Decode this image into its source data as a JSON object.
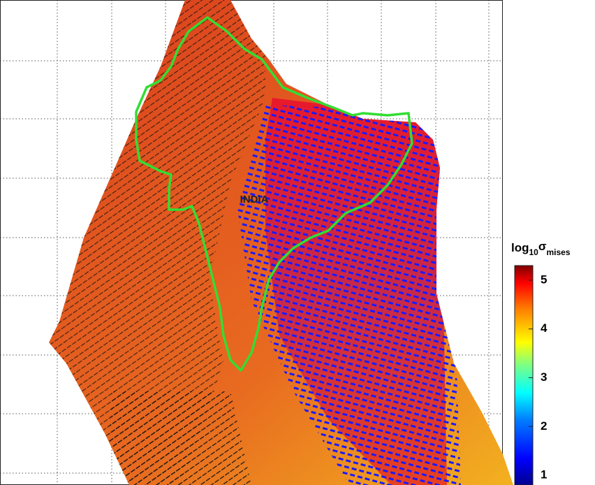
{
  "map": {
    "label": "INDIA"
  },
  "colorbar": {
    "title": {
      "base": "log",
      "base_sub": "10",
      "symbol": "σ",
      "symbol_sub": "mises"
    },
    "lim": [
      0.8,
      5.3
    ],
    "ticks": [
      1,
      2,
      3,
      4,
      5
    ]
  }
}
